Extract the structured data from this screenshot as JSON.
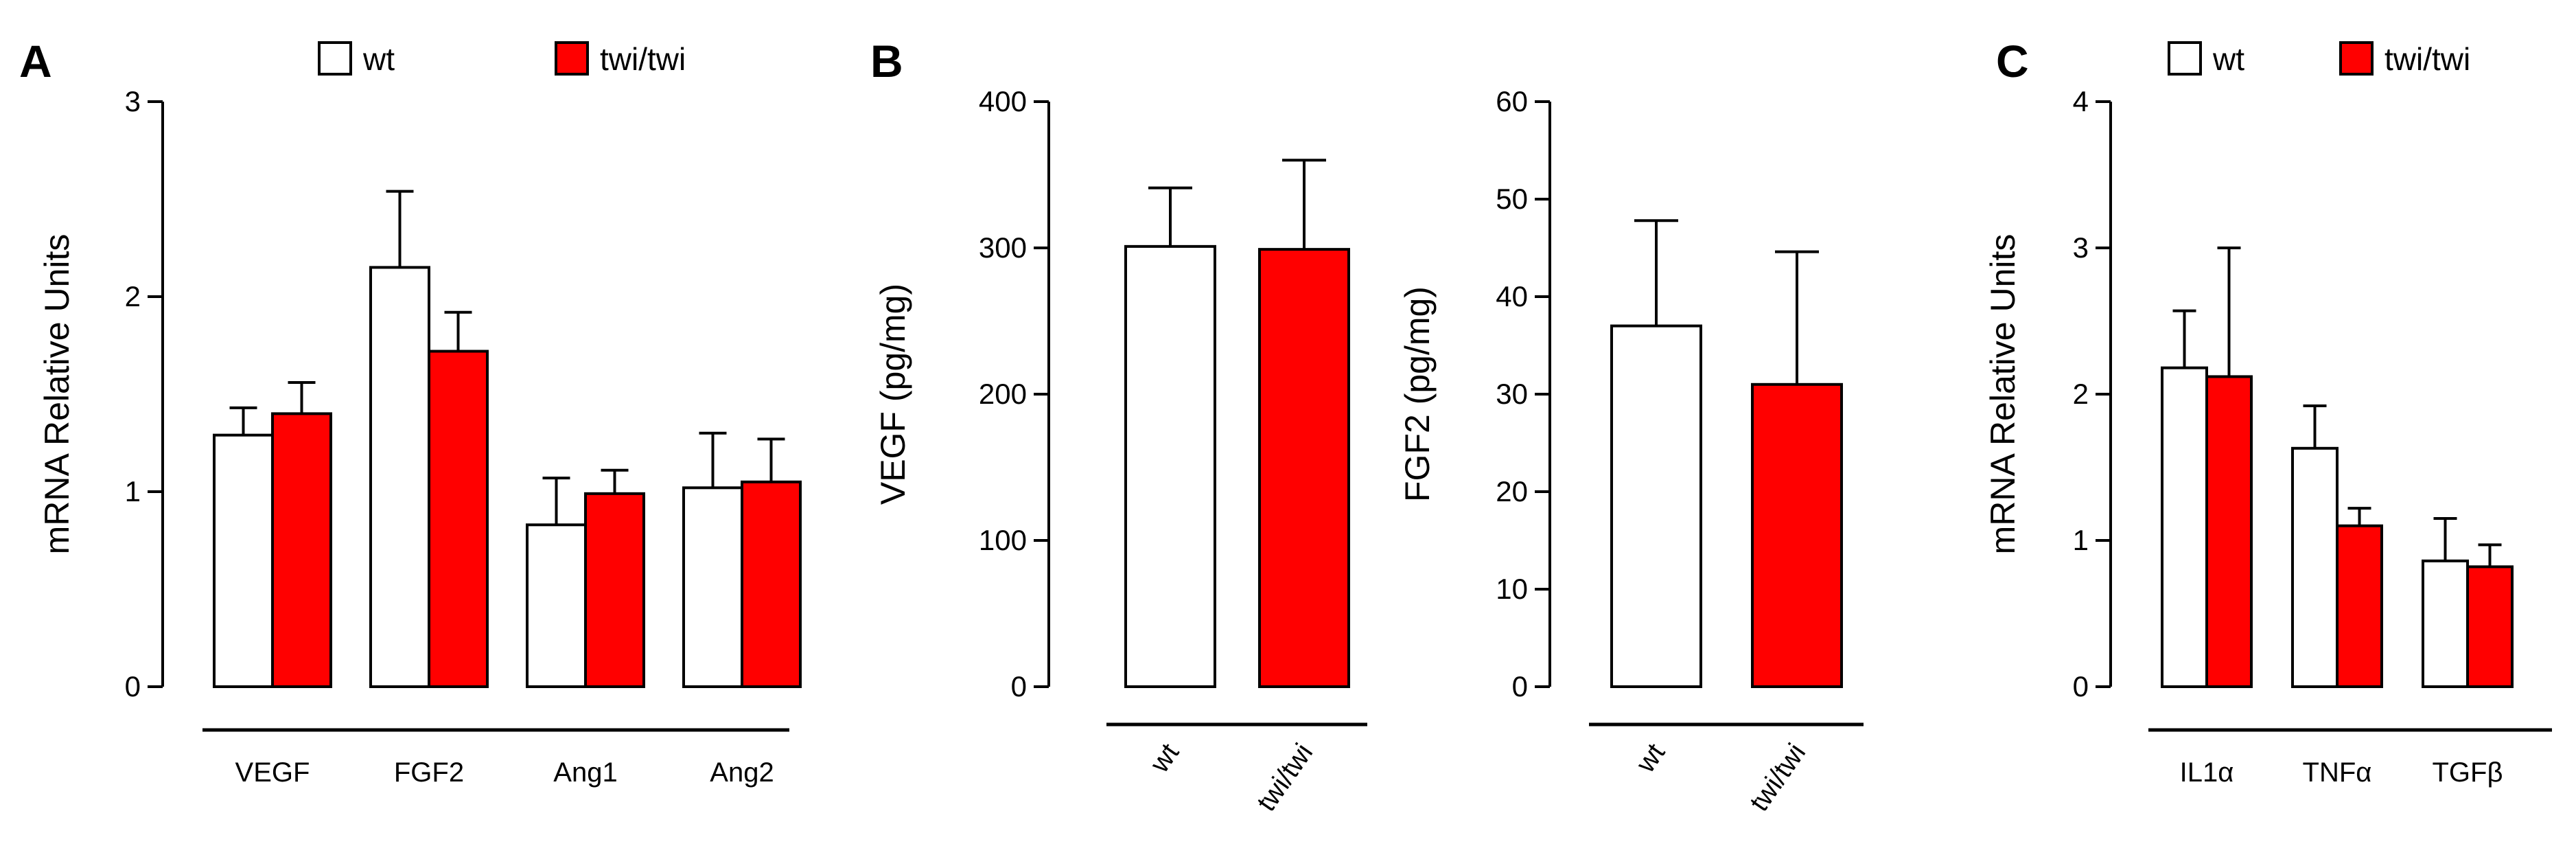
{
  "colors": {
    "wt_fill": "#ffffff",
    "twi_fill": "#ff0000",
    "stroke": "#000000"
  },
  "chart_data": [
    {
      "panel": "A",
      "type": "bar",
      "ylabel": "mRNA Relative Units",
      "xlabel": "",
      "ylim": [
        0,
        3
      ],
      "yticks": [
        "0",
        "1",
        "2",
        "3"
      ],
      "categories": [
        "VEGF",
        "FGF2",
        "Ang1",
        "Ang2"
      ],
      "legend": {
        "placement": "top",
        "entries": [
          "wt",
          "twi/twi"
        ]
      },
      "series": [
        {
          "name": "wt",
          "values": [
            1.29,
            2.15,
            0.83,
            1.02
          ],
          "errors": [
            0.14,
            0.39,
            0.24,
            0.28
          ]
        },
        {
          "name": "twi/twi",
          "values": [
            1.4,
            1.72,
            0.99,
            1.05
          ],
          "errors": [
            0.16,
            0.2,
            0.12,
            0.22
          ]
        }
      ]
    },
    {
      "panel": "B",
      "type": "bar",
      "ylabel": "VEGF (pg/mg)",
      "xlabel": "",
      "ylim": [
        0,
        400
      ],
      "yticks": [
        "0",
        "100",
        "200",
        "300",
        "400"
      ],
      "categories": [
        "wt",
        "twi/twi"
      ],
      "series": [
        {
          "name": "VEGF",
          "values": [
            301,
            299
          ],
          "errors": [
            40,
            61
          ]
        }
      ]
    },
    {
      "panel": "B",
      "type": "bar",
      "ylabel": "FGF2 (pg/mg)",
      "xlabel": "",
      "ylim": [
        0,
        60
      ],
      "yticks": [
        "0",
        "10",
        "20",
        "30",
        "40",
        "50",
        "60"
      ],
      "categories": [
        "wt",
        "twi/twi"
      ],
      "series": [
        {
          "name": "FGF2",
          "values": [
            37,
            31
          ],
          "errors": [
            10.8,
            13.6
          ]
        }
      ]
    },
    {
      "panel": "C",
      "type": "bar",
      "ylabel": "mRNA Relative Units",
      "xlabel": "",
      "ylim": [
        0,
        4
      ],
      "yticks": [
        "0",
        "1",
        "2",
        "3",
        "4"
      ],
      "categories": [
        "IL1α",
        "TNFα",
        "TGFβ"
      ],
      "legend": {
        "placement": "top",
        "entries": [
          "wt",
          "twi/twi"
        ]
      },
      "series": [
        {
          "name": "wt",
          "values": [
            2.18,
            1.63,
            0.86
          ],
          "errors": [
            0.39,
            0.29,
            0.29
          ]
        },
        {
          "name": "twi/twi",
          "values": [
            2.12,
            1.1,
            0.82
          ],
          "errors": [
            0.88,
            0.12,
            0.15
          ]
        }
      ]
    }
  ]
}
